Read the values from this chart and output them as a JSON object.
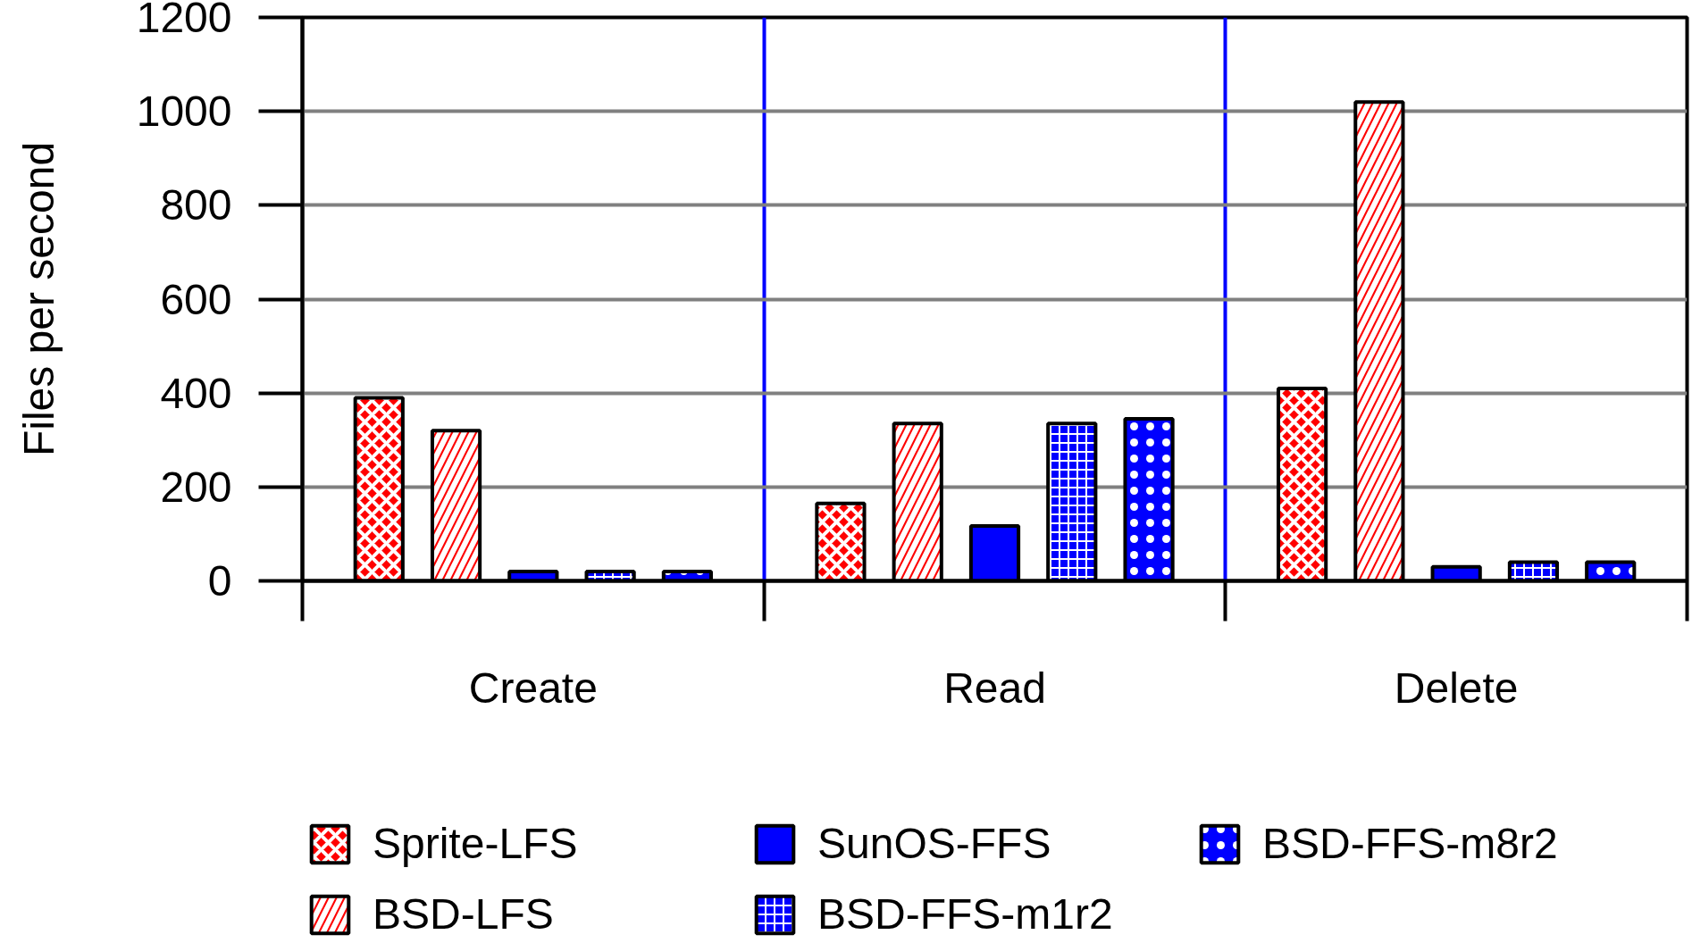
{
  "chart_data": {
    "type": "bar",
    "ylabel": "Files per second",
    "categories": [
      "Create",
      "Read",
      "Delete"
    ],
    "series": [
      {
        "name": "Sprite-LFS",
        "color": "#ff0000",
        "values": [
          390,
          165,
          410
        ]
      },
      {
        "name": "BSD-LFS",
        "color": "#ff0000",
        "values": [
          320,
          335,
          1020
        ]
      },
      {
        "name": "SunOS-FFS",
        "color": "#0000ff",
        "values": [
          20,
          117,
          30
        ]
      },
      {
        "name": "BSD-FFS-m1r2",
        "color": "#0000ff",
        "values": [
          20,
          335,
          40
        ]
      },
      {
        "name": "BSD-FFS-m8r2",
        "color": "#0000ff",
        "values": [
          20,
          345,
          40
        ]
      }
    ],
    "ylim": [
      0,
      1200
    ],
    "yticks": [
      0,
      200,
      400,
      600,
      800,
      1000,
      1200
    ],
    "grid": true,
    "legend": "bottom"
  }
}
